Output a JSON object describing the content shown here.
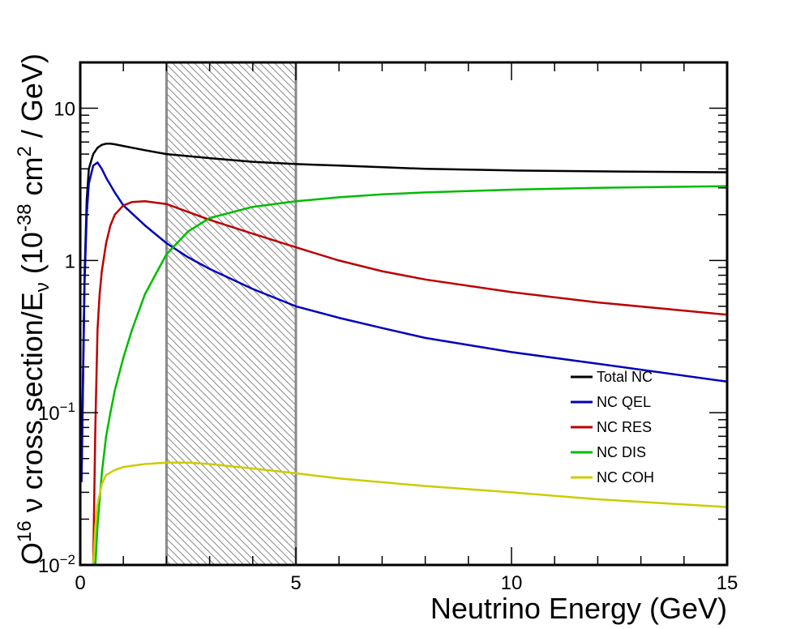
{
  "chart_data": {
    "type": "line",
    "xlabel": "Neutrino Energy (GeV)",
    "ylabel": {
      "p1": "O",
      "p1_sup": "16",
      "p2": " ν cross section/E",
      "p2_sub": "ν",
      "p3": " (10",
      "p3_sup": "-38",
      "p4": " cm",
      "p4_sup": "2",
      "p5": " / GeV)"
    },
    "xlim": [
      0,
      15
    ],
    "ylim": [
      0.01,
      20
    ],
    "yscale": "log",
    "grid": false,
    "legend_position": "bottom-right",
    "x_ticks": [
      {
        "value": 0,
        "label": "0"
      },
      {
        "value": 5,
        "label": "5"
      },
      {
        "value": 10,
        "label": "10"
      },
      {
        "value": 15,
        "label": "15"
      }
    ],
    "y_ticks": [
      {
        "value": 0.01,
        "base": "10",
        "sup": "−2"
      },
      {
        "value": 0.1,
        "base": "10",
        "sup": "−1"
      },
      {
        "value": 1,
        "base": "1",
        "sup": ""
      },
      {
        "value": 10,
        "base": "10",
        "sup": ""
      }
    ],
    "shaded_region": {
      "x": [
        2,
        5
      ],
      "color": "#888888"
    },
    "series": [
      {
        "name": "Total NC",
        "color": "#000000",
        "x": [
          0.03,
          0.1,
          0.15,
          0.2,
          0.3,
          0.4,
          0.5,
          0.6,
          0.7,
          0.8,
          1,
          1.5,
          2,
          3,
          4,
          5,
          6,
          7,
          8,
          10,
          12,
          15
        ],
        "y": [
          0.04,
          0.8,
          2.5,
          4.0,
          5.0,
          5.5,
          5.75,
          5.85,
          5.85,
          5.8,
          5.65,
          5.3,
          5.0,
          4.7,
          4.45,
          4.3,
          4.2,
          4.1,
          4.0,
          3.9,
          3.85,
          3.8
        ]
      },
      {
        "name": "NC QEL",
        "color": "#0000bb",
        "x": [
          0.03,
          0.1,
          0.15,
          0.2,
          0.3,
          0.4,
          0.5,
          0.6,
          0.8,
          1,
          1.5,
          2,
          2.5,
          3,
          4,
          5,
          6,
          7,
          8,
          10,
          12,
          15
        ],
        "y": [
          0.035,
          0.7,
          2.0,
          3.2,
          4.2,
          4.4,
          4.0,
          3.5,
          2.8,
          2.3,
          1.7,
          1.3,
          1.05,
          0.88,
          0.65,
          0.5,
          0.42,
          0.36,
          0.31,
          0.25,
          0.21,
          0.16
        ]
      },
      {
        "name": "NC RES",
        "color": "#bb0000",
        "x": [
          0.3,
          0.35,
          0.4,
          0.45,
          0.5,
          0.6,
          0.7,
          0.8,
          1,
          1.2,
          1.5,
          2,
          3,
          4,
          5,
          6,
          7,
          8,
          10,
          12,
          15
        ],
        "y": [
          0.01,
          0.08,
          0.35,
          0.6,
          0.85,
          1.3,
          1.7,
          2.0,
          2.3,
          2.42,
          2.45,
          2.35,
          1.85,
          1.5,
          1.22,
          1.0,
          0.85,
          0.75,
          0.62,
          0.53,
          0.44
        ]
      },
      {
        "name": "NC DIS",
        "color": "#00bb00",
        "x": [
          0.35,
          0.4,
          0.5,
          0.6,
          0.7,
          0.8,
          1,
          1.2,
          1.5,
          2,
          2.5,
          3,
          4,
          5,
          6,
          7,
          8,
          10,
          12,
          15
        ],
        "y": [
          0.01,
          0.018,
          0.04,
          0.07,
          0.1,
          0.14,
          0.23,
          0.35,
          0.6,
          1.1,
          1.55,
          1.9,
          2.25,
          2.45,
          2.6,
          2.72,
          2.8,
          2.92,
          3.0,
          3.08
        ]
      },
      {
        "name": "NC COH",
        "color": "#cccc00",
        "x": [
          0.3,
          0.35,
          0.4,
          0.5,
          0.6,
          0.8,
          1,
          1.5,
          2,
          2.5,
          3,
          4,
          5,
          6,
          8,
          10,
          12,
          15
        ],
        "y": [
          0.01,
          0.018,
          0.025,
          0.034,
          0.039,
          0.042,
          0.044,
          0.046,
          0.047,
          0.047,
          0.046,
          0.043,
          0.04,
          0.037,
          0.033,
          0.03,
          0.027,
          0.024
        ]
      }
    ]
  }
}
